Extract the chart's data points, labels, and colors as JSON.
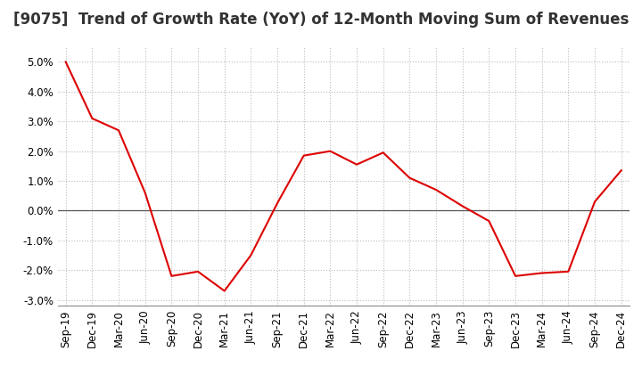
{
  "title": "[9075]  Trend of Growth Rate (YoY) of 12-Month Moving Sum of Revenues",
  "x_labels": [
    "Sep-19",
    "Dec-19",
    "Mar-20",
    "Jun-20",
    "Sep-20",
    "Dec-20",
    "Mar-21",
    "Jun-21",
    "Sep-21",
    "Dec-21",
    "Mar-22",
    "Jun-22",
    "Sep-22",
    "Dec-22",
    "Mar-23",
    "Jun-23",
    "Sep-23",
    "Dec-23",
    "Mar-24",
    "Jun-24",
    "Sep-24",
    "Dec-24"
  ],
  "y_values": [
    5.0,
    3.1,
    2.7,
    0.6,
    -2.2,
    -2.05,
    -2.7,
    -1.5,
    0.25,
    1.85,
    2.0,
    1.55,
    1.95,
    1.1,
    0.7,
    0.15,
    -0.35,
    -2.2,
    -2.1,
    -2.05,
    0.3,
    1.35
  ],
  "line_color": "#dd0000",
  "ylim": [
    -3.2,
    5.5
  ],
  "yticks": [
    -3.0,
    -2.0,
    -1.0,
    0.0,
    1.0,
    2.0,
    3.0,
    4.0,
    5.0
  ],
  "background_color": "#ffffff",
  "grid_color": "#bbbbbb",
  "title_fontsize": 12,
  "tick_fontsize": 8.5,
  "title_color": "#333333"
}
